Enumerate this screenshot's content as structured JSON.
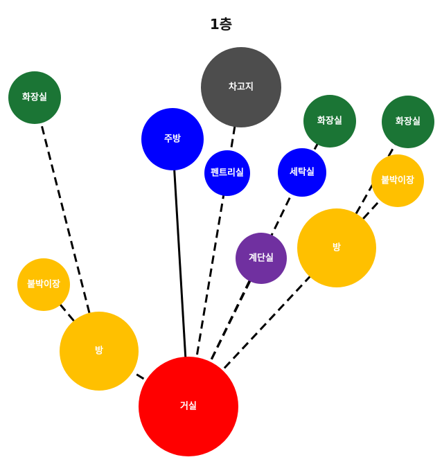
{
  "title": "1층",
  "colors": {
    "living": "#ff0000",
    "bedroom": "#ffc000",
    "closet": "#ffc000",
    "bathroom": "#1b7535",
    "kitchen": "#0000ff",
    "garage": "#4d4d4d",
    "stairs": "#7030a0",
    "edge": "#000000"
  },
  "rooms": [
    {
      "id": "living",
      "label": "거실",
      "color_key": "living"
    },
    {
      "id": "bed-left",
      "label": "방",
      "color_key": "bedroom"
    },
    {
      "id": "bed-right",
      "label": "방",
      "color_key": "bedroom"
    },
    {
      "id": "closet-left",
      "label": "붙박이장",
      "color_key": "closet"
    },
    {
      "id": "closet-right",
      "label": "붙박이장",
      "color_key": "closet"
    },
    {
      "id": "bath-left",
      "label": "화장실",
      "color_key": "bathroom"
    },
    {
      "id": "bath-mid",
      "label": "화장실",
      "color_key": "bathroom"
    },
    {
      "id": "bath-right",
      "label": "화장실",
      "color_key": "bathroom"
    },
    {
      "id": "kitchen",
      "label": "주방",
      "color_key": "kitchen"
    },
    {
      "id": "pantry",
      "label": "펜트리실",
      "color_key": "kitchen"
    },
    {
      "id": "laundry",
      "label": "세탁실",
      "color_key": "kitchen"
    },
    {
      "id": "garage",
      "label": "차고지",
      "color_key": "garage"
    },
    {
      "id": "stairs",
      "label": "계단실",
      "color_key": "stairs"
    }
  ],
  "connections": [
    {
      "from": "living",
      "to": "kitchen",
      "style": "solid"
    },
    {
      "from": "living",
      "to": "bed-left",
      "style": "dashed"
    },
    {
      "from": "living",
      "to": "pantry",
      "style": "dashed"
    },
    {
      "from": "living",
      "to": "laundry",
      "style": "dashed"
    },
    {
      "from": "living",
      "to": "stairs",
      "style": "dashed"
    },
    {
      "from": "living",
      "to": "bed-right",
      "style": "dashed"
    },
    {
      "from": "bed-left",
      "to": "closet-left",
      "style": "dashed"
    },
    {
      "from": "bed-left",
      "to": "bath-left",
      "style": "dashed"
    },
    {
      "from": "pantry",
      "to": "garage",
      "style": "dashed"
    },
    {
      "from": "laundry",
      "to": "bath-mid",
      "style": "dashed"
    },
    {
      "from": "bed-right",
      "to": "closet-right",
      "style": "dashed"
    },
    {
      "from": "bed-right",
      "to": "bath-right",
      "style": "dashed"
    }
  ]
}
